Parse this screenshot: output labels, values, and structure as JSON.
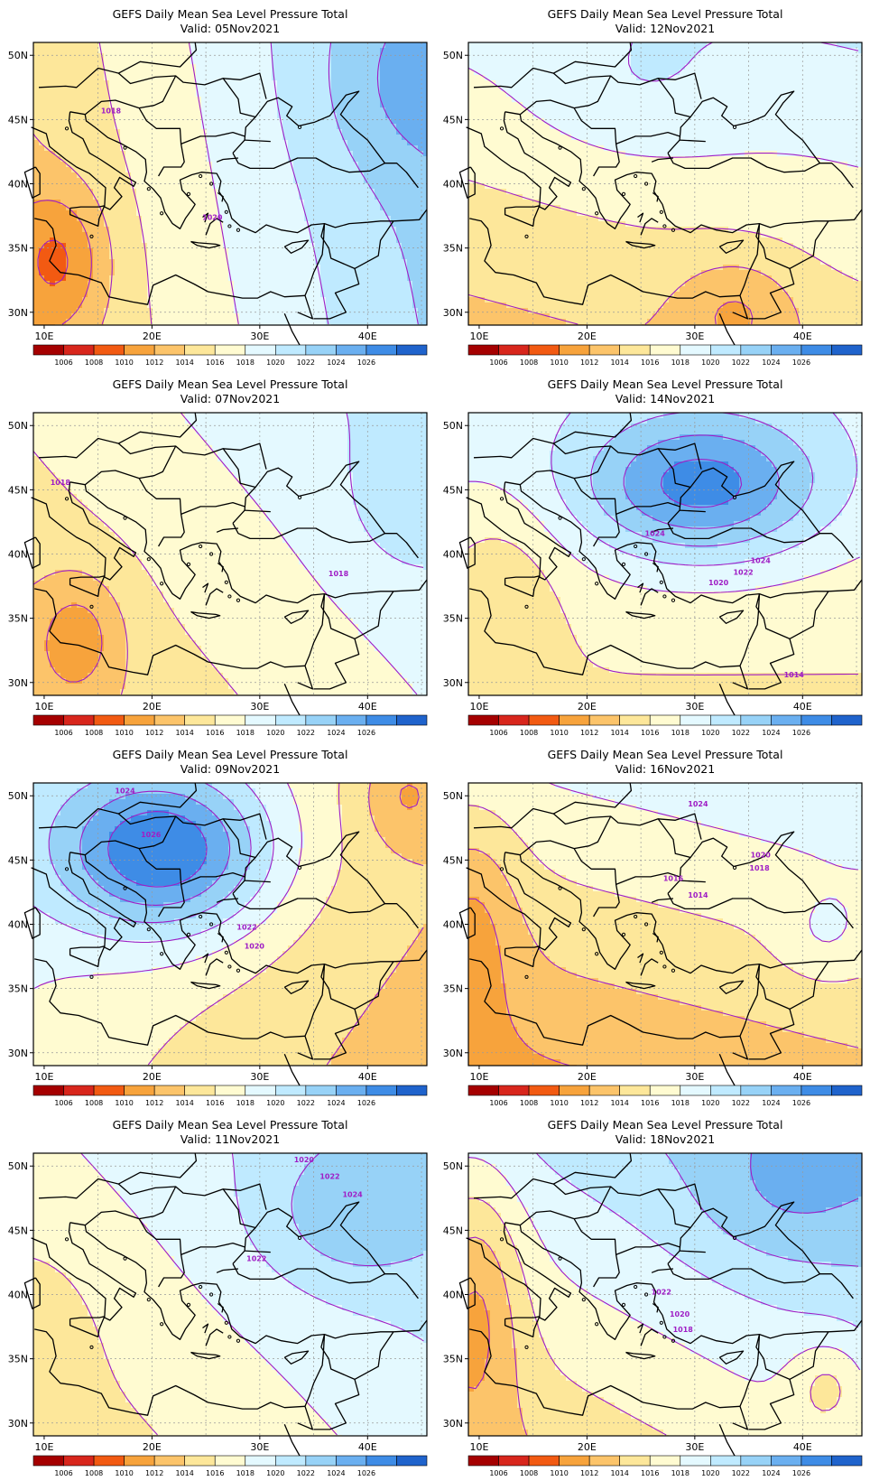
{
  "title": "GEFS Daily Mean Sea Level Pressure Total",
  "lat_labels": [
    "50N",
    "45N",
    "40N",
    "35N",
    "30N"
  ],
  "lon_labels": [
    "10E",
    "20E",
    "30E",
    "40E"
  ],
  "colorbar": {
    "labels": [
      "1006",
      "1008",
      "1010",
      "1012",
      "1014",
      "1016",
      "1018",
      "1020",
      "1022",
      "1024",
      "1026"
    ],
    "colors": [
      "#a50000",
      "#d8261c",
      "#f25a12",
      "#f7a33c",
      "#fcc46a",
      "#fde79a",
      "#fffbd1",
      "#e4f9ff",
      "#bfeaff",
      "#97d2f7",
      "#6aaff0",
      "#3e8ce6",
      "#1f63cc"
    ]
  },
  "contour_color": "#9f1ec5",
  "maps": [
    {
      "valid": "Valid: 05Nov2021",
      "field": {
        "mean": 1018.3,
        "lat_gradient": 0.05,
        "lon_gradient": 0.24,
        "centers": [
          {
            "lon": 11.4,
            "lat": 34.1,
            "amp": -4.6,
            "lon_sd": 3.2,
            "lat_sd": 4.0
          },
          {
            "lon": 43.8,
            "lat": 47.6,
            "amp": 2.2,
            "lon_sd": 6.0,
            "lat_sd": 5.0
          }
        ]
      },
      "contour_labels": [
        {
          "text": "1018",
          "lon": 16.2,
          "lat": 45.7
        },
        {
          "text": "1020",
          "lon": 25.6,
          "lat": 37.4
        }
      ]
    },
    {
      "valid": "Valid: 12Nov2021",
      "field": {
        "mean": 1016.8,
        "lat_gradient": 0.22,
        "lon_gradient": 0.05,
        "centers": [
          {
            "lon": 33.9,
            "lat": 30.2,
            "amp": -3.2,
            "lon_sd": 4.0,
            "lat_sd": 3.0
          },
          {
            "lon": 24.5,
            "lat": 46.8,
            "amp": 1.6,
            "lon_sd": 7.0,
            "lat_sd": 4.0
          }
        ]
      },
      "contour_labels": []
    },
    {
      "valid": "Valid: 07Nov2021",
      "field": {
        "mean": 1017.2,
        "lat_gradient": 0.12,
        "lon_gradient": 0.12,
        "centers": [
          {
            "lon": 13.2,
            "lat": 33.6,
            "amp": -3.9,
            "lon_sd": 3.0,
            "lat_sd": 3.5
          },
          {
            "lon": 43.5,
            "lat": 44.0,
            "amp": 1.8,
            "lon_sd": 4.0,
            "lat_sd": 4.0
          }
        ]
      },
      "contour_labels": [
        {
          "text": "1018",
          "lon": 11.5,
          "lat": 45.6
        },
        {
          "text": "1018",
          "lon": 37.3,
          "lat": 38.5
        }
      ]
    },
    {
      "valid": "Valid: 14Nov2021",
      "field": {
        "mean": 1017.4,
        "lat_gradient": 0.15,
        "lon_gradient": 0.0,
        "centers": [
          {
            "lon": 30.6,
            "lat": 45.2,
            "amp": 8.7,
            "lon_sd": 8.0,
            "lat_sd": 4.0
          },
          {
            "lon": 12.0,
            "lat": 37.2,
            "amp": -2.6,
            "lon_sd": 4.0,
            "lat_sd": 5.0
          }
        ]
      },
      "contour_labels": [
        {
          "text": "1024",
          "lon": 26.3,
          "lat": 41.6
        },
        {
          "text": "1024",
          "lon": 36.1,
          "lat": 39.5
        },
        {
          "text": "1022",
          "lon": 34.5,
          "lat": 38.6
        },
        {
          "text": "1020",
          "lon": 32.2,
          "lat": 37.8
        },
        {
          "text": "1014",
          "lon": 39.2,
          "lat": 30.6
        }
      ]
    },
    {
      "valid": "Valid: 09Nov2021",
      "field": {
        "mean": 1016.2,
        "lat_gradient": 0.1,
        "lon_gradient": -0.12,
        "centers": [
          {
            "lon": 21.2,
            "lat": 45.6,
            "amp": 10.5,
            "lon_sd": 7.0,
            "lat_sd": 4.5
          },
          {
            "lon": 43.5,
            "lat": 50.2,
            "amp": -3.4,
            "lon_sd": 3.0,
            "lat_sd": 3.0
          }
        ]
      },
      "contour_labels": [
        {
          "text": "1024",
          "lon": 17.5,
          "lat": 50.4
        },
        {
          "text": "1026",
          "lon": 19.9,
          "lat": 47.0
        },
        {
          "text": "1022",
          "lon": 28.8,
          "lat": 39.8
        },
        {
          "text": "1020",
          "lon": 29.5,
          "lat": 38.3
        }
      ]
    },
    {
      "valid": "Valid: 16Nov2021",
      "field": {
        "mean": 1015.6,
        "lat_gradient": 0.28,
        "lon_gradient": 0.06,
        "centers": [
          {
            "lon": 9.5,
            "lat": 40.6,
            "amp": -3.2,
            "lon_sd": 3.0,
            "lat_sd": 6.0
          },
          {
            "lon": 42.0,
            "lat": 39.0,
            "amp": 1.9,
            "lon_sd": 3.0,
            "lat_sd": 2.5
          }
        ]
      },
      "contour_labels": [
        {
          "text": "1024",
          "lon": 30.3,
          "lat": 49.4
        },
        {
          "text": "1020",
          "lon": 36.1,
          "lat": 45.4
        },
        {
          "text": "1018",
          "lon": 36.0,
          "lat": 44.4
        },
        {
          "text": "1016",
          "lon": 28.0,
          "lat": 43.6
        },
        {
          "text": "1014",
          "lon": 30.3,
          "lat": 42.3
        }
      ]
    },
    {
      "valid": "Valid: 11Nov2021",
      "field": {
        "mean": 1018.2,
        "lat_gradient": 0.13,
        "lon_gradient": 0.12,
        "centers": [
          {
            "lon": 38.0,
            "lat": 46.0,
            "amp": 3.2,
            "lon_sd": 6.0,
            "lat_sd": 4.0
          },
          {
            "lon": 10.0,
            "lat": 36.5,
            "amp": -1.5,
            "lon_sd": 3.0,
            "lat_sd": 4.0
          }
        ]
      },
      "contour_labels": [
        {
          "text": "1020",
          "lon": 34.1,
          "lat": 50.5
        },
        {
          "text": "1022",
          "lon": 36.5,
          "lat": 49.2
        },
        {
          "text": "1024",
          "lon": 38.6,
          "lat": 47.8
        },
        {
          "text": "1022",
          "lon": 29.7,
          "lat": 42.8
        }
      ]
    },
    {
      "valid": "Valid: 18Nov2021",
      "field": {
        "mean": 1018.8,
        "lat_gradient": 0.26,
        "lon_gradient": 0.12,
        "centers": [
          {
            "lon": 9.8,
            "lat": 39.9,
            "amp": -4.8,
            "lon_sd": 3.0,
            "lat_sd": 7.0
          },
          {
            "lon": 42.4,
            "lat": 33.0,
            "amp": -3.2,
            "lon_sd": 2.5,
            "lat_sd": 2.5
          },
          {
            "lon": 38.0,
            "lat": 47.5,
            "amp": 2.2,
            "lon_sd": 6.0,
            "lat_sd": 4.0
          }
        ]
      },
      "contour_labels": [
        {
          "text": "1022",
          "lon": 26.9,
          "lat": 40.2
        },
        {
          "text": "1020",
          "lon": 28.6,
          "lat": 38.5
        },
        {
          "text": "1018",
          "lon": 28.9,
          "lat": 37.3
        }
      ]
    }
  ]
}
